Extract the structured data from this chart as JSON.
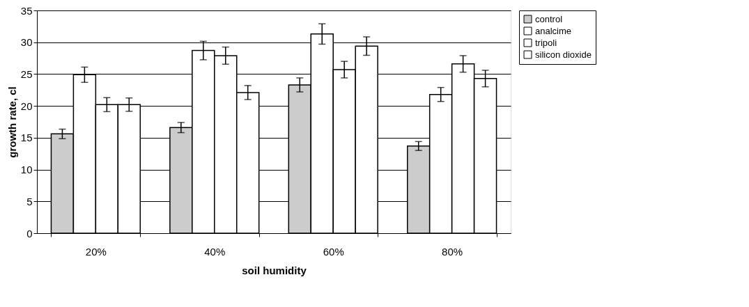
{
  "chart_data": {
    "type": "bar",
    "xlabel": "soil humidity",
    "ylabel": "growth rate, cl",
    "categories": [
      "20%",
      "40%",
      "60%",
      "80%"
    ],
    "series": [
      {
        "name": "control",
        "color": "#cccccc",
        "values": [
          15.6,
          16.6,
          23.3,
          13.7
        ],
        "errors": [
          0.75,
          0.8,
          1.1,
          0.7
        ]
      },
      {
        "name": "analcime",
        "color": "#ffffff",
        "values": [
          24.9,
          28.7,
          31.3,
          21.8
        ],
        "errors": [
          1.2,
          1.45,
          1.6,
          1.1
        ]
      },
      {
        "name": "tripoli",
        "color": "#ffffff",
        "values": [
          20.2,
          27.9,
          25.7,
          26.6
        ],
        "errors": [
          1.1,
          1.35,
          1.3,
          1.3
        ]
      },
      {
        "name": "silicon dioxide",
        "color": "#ffffff",
        "values": [
          20.2,
          22.1,
          29.4,
          24.3
        ],
        "errors": [
          1.05,
          1.1,
          1.45,
          1.3
        ]
      }
    ],
    "ylim": [
      0,
      35
    ],
    "yticks": [
      0,
      5,
      10,
      15,
      20,
      25,
      30,
      35
    ],
    "grid": "y",
    "legend": "right"
  }
}
